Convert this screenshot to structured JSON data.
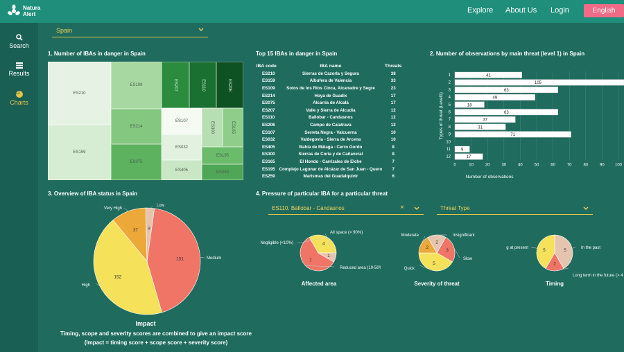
{
  "app": {
    "name_line1": "Natura",
    "name_line2": "Alert"
  },
  "nav": {
    "explore": "Explore",
    "about": "About Us",
    "login": "Login",
    "language": "English"
  },
  "sidebar": {
    "items": [
      {
        "label": "Search",
        "icon": "search-icon"
      },
      {
        "label": "Results",
        "icon": "list-icon"
      },
      {
        "label": "Charts",
        "icon": "pie-chart-icon",
        "active": true
      }
    ]
  },
  "country_select": {
    "value": "Spain"
  },
  "section1": {
    "title": "1. Number of IBAs in danger in Spain"
  },
  "treemap": {
    "cells": [
      {
        "code": "ES210"
      },
      {
        "code": "ES159"
      },
      {
        "code": "ES109"
      },
      {
        "code": "ES214"
      },
      {
        "code": "ES075"
      },
      {
        "code": "ES207"
      },
      {
        "code": "ES110"
      },
      {
        "code": "ES206"
      },
      {
        "code": "ES107"
      },
      {
        "code": "ES032"
      },
      {
        "code": "ES405"
      },
      {
        "code": "ES300"
      },
      {
        "code": "ES165"
      },
      {
        "code": "ES195"
      },
      {
        "code": "ES259"
      }
    ]
  },
  "top15": {
    "title": "Top 15 IBAs in danger in Spain",
    "headers": [
      "IBA code",
      "IBA name",
      "Threats"
    ],
    "rows": [
      [
        "ES210",
        "Sierras de Cazorla y Segura",
        "38"
      ],
      [
        "ES159",
        "Albufera de Valencia",
        "33"
      ],
      [
        "ES109",
        "Sotos de los Ríos Cinca, Alcanadre y Segre",
        "23"
      ],
      [
        "ES214",
        "Hoya de Guadix",
        "17"
      ],
      [
        "ES075",
        "Alcarria de Alcalá",
        "17"
      ],
      [
        "ES207",
        "Valle y Sierra de Alcudia",
        "12"
      ],
      [
        "ES110",
        "Ballobar - Candasnos",
        "12"
      ],
      [
        "ES206",
        "Campo de Calatrava",
        "12"
      ],
      [
        "ES107",
        "Serreta Negra - Valcuerna",
        "10"
      ],
      [
        "ES032",
        "Valdegovía - Sierra de Arcena",
        "10"
      ],
      [
        "ES405",
        "Bahía de Málaga - Cerro Gordo",
        "8"
      ],
      [
        "ES300",
        "Sierras de Coria y de Cañaveral",
        "8"
      ],
      [
        "ES165",
        "El Hondo - Carrizales de Elche",
        "7"
      ],
      [
        "ES195",
        "Complejo Lagunar de Alcázar de San Juan - Quero",
        "7"
      ],
      [
        "ES259",
        "Marismas del Guadalquivir",
        "6"
      ]
    ]
  },
  "section2": {
    "title": "2. Number of observations by main threat (level 1) in Spain"
  },
  "section3": {
    "title": "3. Overview of IBA status in Spain"
  },
  "section4": {
    "title": "4. Pressure of particular IBA for a particular threat"
  },
  "iba_select": {
    "value": "ES110. Ballobar - Candasnos"
  },
  "threat_select": {
    "placeholder": "Threat Type"
  },
  "impact": {
    "label": "Impact",
    "desc1": "Timing, scope and severity scores are combined to give an impact score",
    "desc2": "(Impact = timing score + scope score + severity score)"
  },
  "small_pies": {
    "affected": "Affected area",
    "severity": "Severity of threat",
    "timing": "Timing"
  },
  "chart_data": [
    {
      "type": "bar",
      "title": "2. Number of observations by main threat (level 1) in Spain",
      "orientation": "horizontal",
      "categories": [
        "1",
        "2",
        "3",
        "4",
        "5",
        "6",
        "7",
        "8",
        "9",
        "10",
        "11",
        "12"
      ],
      "values": [
        41,
        105,
        63,
        49,
        18,
        63,
        37,
        31,
        71,
        0,
        9,
        17
      ],
      "xlabel": "Number of observations",
      "ylabel": "Types of threat (Level1)",
      "xlim": [
        0,
        100
      ],
      "xticks": [
        "0",
        "10",
        "20",
        "30",
        "40",
        "50",
        "60",
        "70",
        "80",
        "90",
        "100"
      ],
      "color": "#ffffff"
    },
    {
      "type": "pie",
      "title": "3. Overview of IBA status in Spain",
      "labels": [
        "Medium",
        "High",
        "Very High",
        "Low"
      ],
      "values": [
        151,
        152,
        37,
        9
      ],
      "colors": [
        "#f07567",
        "#f5e15a",
        "#eda83a",
        "#e5c5b0"
      ]
    },
    {
      "type": "pie",
      "title": "Affected area",
      "labels": [
        "Reduced area (10-50%)",
        "Negligible (<10%)",
        "All space (> 90%)"
      ],
      "values": [
        7,
        4,
        1
      ],
      "colors": [
        "#f07567",
        "#f5e15a",
        "#e5c5b0"
      ]
    },
    {
      "type": "pie",
      "title": "Severity of threat",
      "labels": [
        "Slow",
        "Quick",
        "Moderate",
        "Insignificant"
      ],
      "values": [
        3,
        5,
        2,
        2
      ],
      "colors": [
        "#f07567",
        "#f5e15a",
        "#eda83a",
        "#e5c5b0"
      ]
    },
    {
      "type": "pie",
      "title": "Timing",
      "labels": [
        "In the past",
        "Long term in the future (> 4",
        "happening at present"
      ],
      "values": [
        5,
        2,
        5
      ],
      "colors": [
        "#e5c5b0",
        "#f07567",
        "#f5e15a"
      ]
    }
  ]
}
